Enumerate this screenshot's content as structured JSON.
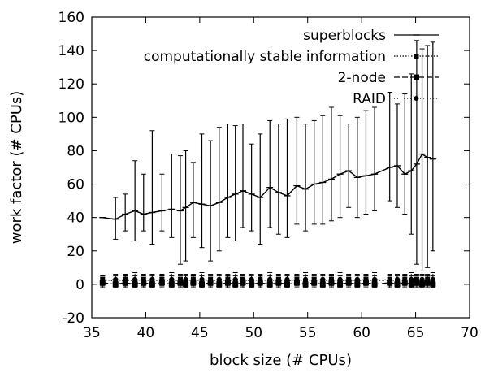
{
  "chart_data": {
    "type": "line",
    "xlabel": "block size (# CPUs)",
    "ylabel": "work factor (# CPUs)",
    "xlim": [
      35,
      70
    ],
    "ylim": [
      -20,
      160
    ],
    "xticks": [
      35,
      40,
      45,
      50,
      55,
      60,
      65,
      70
    ],
    "yticks": [
      -20,
      0,
      20,
      40,
      60,
      80,
      100,
      120,
      140,
      160
    ],
    "grid": false,
    "legend_position": "top-right",
    "series": [
      {
        "name": "superblocks",
        "style": "solid",
        "color": "#000000",
        "x": [
          36.0,
          37.2,
          38.1,
          39.0,
          39.8,
          40.6,
          41.5,
          42.4,
          43.2,
          43.7,
          44.4,
          45.2,
          46.0,
          46.8,
          47.6,
          48.3,
          49.0,
          49.8,
          50.6,
          51.5,
          52.3,
          53.1,
          54.0,
          54.8,
          55.6,
          56.4,
          57.2,
          58.0,
          58.8,
          59.6,
          60.4,
          61.2,
          62.6,
          63.3,
          64.0,
          64.6,
          65.1,
          65.6,
          66.1,
          66.6
        ],
        "y": [
          40,
          39,
          42,
          44,
          42,
          43,
          44,
          45,
          44,
          46,
          49,
          48,
          47,
          49,
          52,
          54,
          56,
          54,
          52,
          58,
          55,
          53,
          59,
          57,
          60,
          61,
          63,
          66,
          68,
          64,
          65,
          66,
          70,
          71,
          66,
          68,
          72,
          78,
          76,
          75
        ],
        "err_high": [
          40,
          52,
          54,
          74,
          66,
          92,
          66,
          78,
          77,
          80,
          73,
          90,
          86,
          94,
          96,
          95,
          96,
          84,
          90,
          98,
          96,
          99,
          100,
          96,
          98,
          101,
          106,
          101,
          96,
          100,
          104,
          106,
          115,
          108,
          114,
          126,
          146,
          141,
          143,
          145
        ],
        "err_low": [
          40,
          27,
          32,
          26,
          32,
          24,
          32,
          28,
          12,
          14,
          28,
          22,
          14,
          20,
          28,
          26,
          34,
          32,
          24,
          34,
          30,
          28,
          36,
          32,
          36,
          36,
          38,
          40,
          46,
          40,
          42,
          44,
          50,
          46,
          42,
          30,
          12,
          8,
          10,
          20
        ]
      },
      {
        "name": "computationally stable information",
        "style": "dotted",
        "color": "#000000",
        "x": [
          36.0,
          37.2,
          38.1,
          39.0,
          39.8,
          40.6,
          41.5,
          42.4,
          43.2,
          43.7,
          44.4,
          45.2,
          46.0,
          46.8,
          47.6,
          48.3,
          49.0,
          49.8,
          50.6,
          51.5,
          52.3,
          53.1,
          54.0,
          54.8,
          55.6,
          56.4,
          57.2,
          58.0,
          58.8,
          59.6,
          60.4,
          61.2,
          62.6,
          63.3,
          64.0,
          64.6,
          65.1,
          65.6,
          66.1,
          66.6
        ],
        "y": [
          3,
          2,
          3,
          2,
          3,
          2,
          3,
          2,
          3,
          2,
          3,
          2,
          3,
          2,
          3,
          2,
          3,
          2,
          3,
          2,
          3,
          2,
          3,
          2,
          3,
          2,
          3,
          2,
          3,
          2,
          3,
          2,
          3,
          2,
          3,
          2,
          3,
          2,
          3,
          2
        ],
        "err_high": [
          5,
          5,
          6,
          5,
          6,
          5,
          6,
          5,
          6,
          5,
          6,
          5,
          6,
          5,
          6,
          5,
          6,
          5,
          6,
          5,
          6,
          5,
          6,
          5,
          6,
          5,
          6,
          5,
          6,
          5,
          6,
          5,
          6,
          5,
          6,
          5,
          6,
          5,
          6,
          5
        ],
        "err_low": [
          0,
          -1,
          0,
          -1,
          0,
          -1,
          0,
          -1,
          0,
          -1,
          0,
          -1,
          0,
          -1,
          0,
          -1,
          0,
          -1,
          0,
          -1,
          0,
          -1,
          0,
          -1,
          0,
          -1,
          0,
          -1,
          0,
          -1,
          0,
          -1,
          0,
          -1,
          0,
          -1,
          0,
          -1,
          0,
          -1
        ]
      },
      {
        "name": "2-node",
        "style": "dashed",
        "color": "#000000",
        "x": [
          36.0,
          37.2,
          38.1,
          39.0,
          39.8,
          40.6,
          41.5,
          42.4,
          43.2,
          43.7,
          44.4,
          45.2,
          46.0,
          46.8,
          47.6,
          48.3,
          49.0,
          49.8,
          50.6,
          51.5,
          52.3,
          53.1,
          54.0,
          54.8,
          55.6,
          56.4,
          57.2,
          58.0,
          58.8,
          59.6,
          60.4,
          61.2,
          62.6,
          63.3,
          64.0,
          64.6,
          65.1,
          65.6,
          66.1,
          66.6
        ],
        "y": [
          1,
          0,
          1,
          0,
          1,
          0,
          1,
          0,
          1,
          0,
          1,
          0,
          1,
          0,
          1,
          0,
          1,
          0,
          1,
          0,
          1,
          0,
          1,
          0,
          1,
          0,
          1,
          0,
          1,
          0,
          1,
          0,
          1,
          0,
          1,
          0,
          1,
          0,
          1,
          0
        ],
        "err_high": [
          4,
          3,
          5,
          3,
          4,
          3,
          5,
          3,
          4,
          3,
          5,
          3,
          4,
          3,
          5,
          3,
          4,
          3,
          5,
          3,
          4,
          3,
          5,
          3,
          4,
          3,
          5,
          3,
          4,
          3,
          5,
          3,
          4,
          3,
          5,
          3,
          4,
          3,
          5,
          3
        ],
        "err_low": [
          -2,
          -2,
          -2,
          -2,
          -2,
          -2,
          -2,
          -2,
          -2,
          -2,
          -2,
          -2,
          -2,
          -2,
          -2,
          -2,
          -2,
          -2,
          -2,
          -2,
          -2,
          -2,
          -2,
          -2,
          -2,
          -2,
          -2,
          -2,
          -2,
          -2,
          -2,
          -2,
          -2,
          -2,
          -2,
          -2,
          -2,
          -2,
          -2,
          -2
        ]
      },
      {
        "name": "RAID",
        "style": "dotted-fine",
        "color": "#000000",
        "x": [
          36.0,
          37.2,
          38.1,
          39.0,
          39.8,
          40.6,
          41.5,
          42.4,
          43.2,
          43.7,
          44.4,
          45.2,
          46.0,
          46.8,
          47.6,
          48.3,
          49.0,
          49.8,
          50.6,
          51.5,
          52.3,
          53.1,
          54.0,
          54.8,
          55.6,
          56.4,
          57.2,
          58.0,
          58.8,
          59.6,
          60.4,
          61.2,
          62.6,
          63.3,
          64.0,
          64.6,
          65.1,
          65.6,
          66.1,
          66.6
        ],
        "y": [
          2,
          3,
          2,
          3,
          2,
          3,
          2,
          3,
          2,
          3,
          2,
          3,
          2,
          3,
          2,
          3,
          2,
          3,
          2,
          3,
          2,
          3,
          2,
          3,
          2,
          3,
          2,
          3,
          2,
          3,
          2,
          3,
          2,
          3,
          2,
          3,
          2,
          3,
          2,
          3
        ],
        "err_high": [
          5,
          6,
          5,
          7,
          5,
          6,
          5,
          7,
          5,
          6,
          5,
          7,
          5,
          6,
          5,
          7,
          5,
          6,
          5,
          7,
          5,
          6,
          5,
          7,
          5,
          6,
          5,
          7,
          5,
          6,
          5,
          7,
          5,
          6,
          5,
          7,
          5,
          6,
          5,
          7
        ],
        "err_low": [
          -1,
          0,
          -1,
          0,
          -1,
          0,
          -1,
          0,
          -1,
          0,
          -1,
          0,
          -1,
          0,
          -1,
          0,
          -1,
          0,
          -1,
          0,
          -1,
          0,
          -1,
          0,
          -1,
          0,
          -1,
          0,
          -1,
          0,
          -1,
          0,
          -1,
          0,
          -1,
          0,
          -1,
          0,
          -1,
          0
        ]
      }
    ]
  }
}
